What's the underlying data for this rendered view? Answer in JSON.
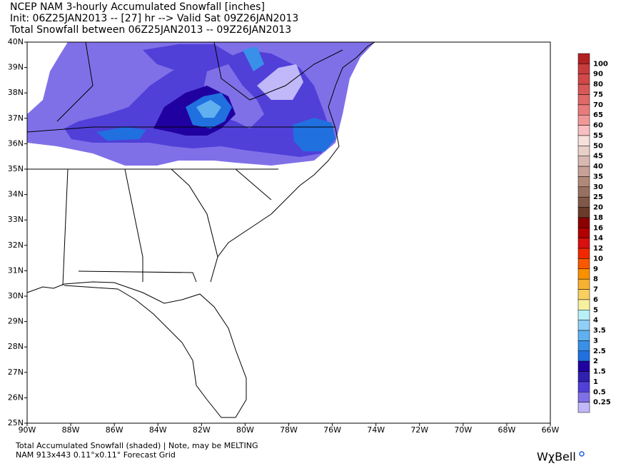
{
  "header": {
    "lines": [
      "NCEP NAM 3-hourly Accumulated Snowfall [inches]",
      "Init: 06Z25JAN2013 -- [27] hr --> Valid Sat 09Z26JAN2013",
      "Total Snowfall between 06Z25JAN2013 -- 09Z26JAN2013"
    ]
  },
  "map": {
    "lat_labels": [
      "40N",
      "39N",
      "38N",
      "37N",
      "36N",
      "35N",
      "34N",
      "33N",
      "32N",
      "31N",
      "30N",
      "29N",
      "28N",
      "27N",
      "26N",
      "25N"
    ],
    "lon_labels": [
      "90W",
      "88W",
      "86W",
      "84W",
      "82W",
      "80W",
      "78W",
      "76W",
      "74W",
      "72W",
      "70W",
      "68W",
      "66W"
    ]
  },
  "colorbar": {
    "labels": [
      "100",
      "90",
      "80",
      "75",
      "70",
      "65",
      "60",
      "55",
      "50",
      "45",
      "40",
      "35",
      "30",
      "25",
      "20",
      "18",
      "16",
      "14",
      "12",
      "10",
      "9",
      "8",
      "7",
      "6",
      "5",
      "4",
      "3.5",
      "3",
      "2.5",
      "2",
      "1.5",
      "1",
      "0.5",
      "0.25"
    ],
    "colors": [
      "#b22222",
      "#c83c3c",
      "#d04848",
      "#d85858",
      "#e06868",
      "#e87c7c",
      "#f09898",
      "#f8c0c0",
      "#f8e0dc",
      "#e8d0c8",
      "#d8b8b0",
      "#c8a098",
      "#b08878",
      "#987060",
      "#805848",
      "#6a3a2a",
      "#8b0000",
      "#b00000",
      "#d81010",
      "#f02800",
      "#f85800",
      "#f89000",
      "#f8b030",
      "#f8d060",
      "#f8f0a0",
      "#b8f0f8",
      "#90d0f8",
      "#60b0f0",
      "#3890e8",
      "#2070e0",
      "#2000a0",
      "#3020b0",
      "#5040d8",
      "#8070e8",
      "#c0b8f8"
    ]
  },
  "footer": {
    "lines": [
      "Total Accumulated Snowfall (shaded) | Note, may be MELTING",
      "NAM 913x443 0.11°x0.11° Forecast Grid"
    ],
    "logo": "WχBell"
  }
}
